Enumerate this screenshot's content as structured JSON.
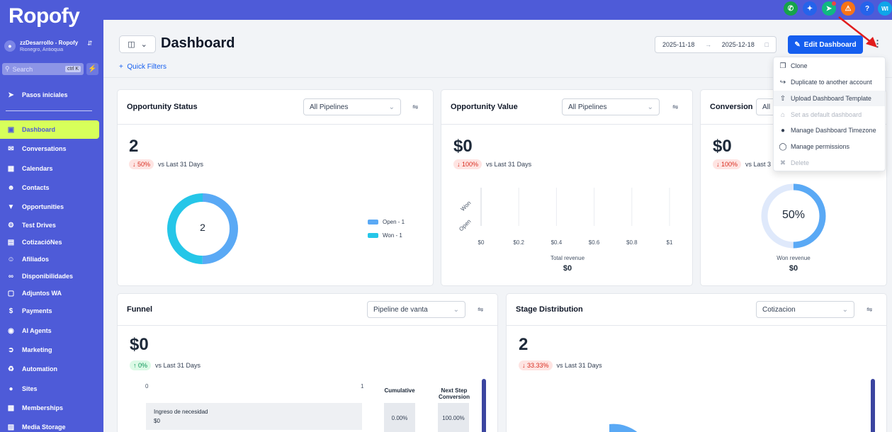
{
  "brand": {
    "logo": "Ropofy"
  },
  "account": {
    "name": "zzDesarrollo - Ropofy",
    "location": "Rionegro, Antioquia"
  },
  "search": {
    "placeholder": "Search",
    "shortcut": "ctrl K"
  },
  "nav": [
    {
      "label": "Pasos iniciales",
      "icon": "rocket-icon"
    },
    {
      "label": "Dashboard",
      "icon": "dashboard-icon",
      "active": true
    },
    {
      "label": "Conversations",
      "icon": "chat-icon"
    },
    {
      "label": "Calendars",
      "icon": "calendar-icon"
    },
    {
      "label": "Contacts",
      "icon": "contacts-icon"
    },
    {
      "label": "Opportunities",
      "icon": "funnel-icon"
    },
    {
      "label": "Test Drives",
      "icon": "car-icon"
    },
    {
      "label": "CotizacióNes",
      "icon": "document-icon"
    },
    {
      "label": "Afiliados",
      "icon": "users-icon"
    },
    {
      "label": "Disponibilidades",
      "icon": "link-icon"
    },
    {
      "label": "Adjuntos WA",
      "icon": "box-icon"
    },
    {
      "label": "Payments",
      "icon": "dollar-icon"
    },
    {
      "label": "AI Agents",
      "icon": "robot-icon"
    },
    {
      "label": "Marketing",
      "icon": "megaphone-icon"
    },
    {
      "label": "Automation",
      "icon": "automation-icon"
    },
    {
      "label": "Sites",
      "icon": "globe-icon"
    },
    {
      "label": "Memberships",
      "icon": "membership-icon"
    },
    {
      "label": "Media Storage",
      "icon": "media-icon"
    }
  ],
  "topbar": {
    "avatar": "WI",
    "help": "?"
  },
  "header": {
    "title": "Dashboard",
    "quick_filters": "Quick Filters",
    "date_start": "2025-11-18",
    "date_end": "2025-12-18",
    "edit_label": "Edit Dashboard"
  },
  "menu": {
    "items": [
      {
        "label": "Clone",
        "icon": "clone-icon"
      },
      {
        "label": "Duplicate to another account",
        "icon": "duplicate-icon"
      },
      {
        "label": "Upload Dashboard Template",
        "icon": "upload-icon",
        "hover": true
      },
      {
        "label": "Set as default dashboard",
        "icon": "home-icon",
        "disabled": true
      },
      {
        "label": "Manage Dashboard Timezone",
        "icon": "globe-icon"
      },
      {
        "label": "Manage permissions",
        "icon": "lock-icon"
      },
      {
        "label": "Delete",
        "icon": "trash-icon",
        "disabled": true
      }
    ]
  },
  "cards": {
    "opp_status": {
      "title": "Opportunity Status",
      "select": "All Pipelines",
      "value": "2",
      "change": "50%",
      "direction": "down",
      "compare": "vs Last 31 Days",
      "center": "2",
      "legend": [
        "Open - 1",
        "Won - 1"
      ],
      "colors": {
        "open": "#5aa9f5",
        "won": "#25c6e8"
      }
    },
    "opp_value": {
      "title": "Opportunity Value",
      "select": "All Pipelines",
      "value": "$0",
      "change": "100%",
      "direction": "down",
      "compare": "vs Last 31 Days",
      "y_labels": [
        "Won",
        "Open"
      ],
      "x_ticks": [
        "$0",
        "$0.2",
        "$0.4",
        "$0.6",
        "$0.8",
        "$1"
      ],
      "footer_label": "Total revenue",
      "footer_value": "$0"
    },
    "conversion": {
      "title": "Conversion",
      "select": "All",
      "value": "$0",
      "change": "100%",
      "direction": "down",
      "compare": "vs Last 3",
      "center": "50%",
      "gauge_percent": 50,
      "footer_label": "Won revenue",
      "footer_value": "$0"
    },
    "funnel": {
      "title": "Funnel",
      "select": "Pipeline de vanta",
      "value": "$0",
      "change": "0%",
      "direction": "up",
      "compare": "vs Last 31 Days",
      "axis": [
        "0",
        "1"
      ],
      "col_cumulative": "Cumulative",
      "col_next": "Next Step Conversion",
      "stage": "Ingreso de necesidad",
      "stage_value": "$0",
      "cumulative": "0.00%",
      "next": "100.00%"
    },
    "stage_dist": {
      "title": "Stage Distribution",
      "select": "Cotizacion",
      "value": "2",
      "change": "33.33%",
      "direction": "down",
      "compare": "vs Last 31 Days"
    }
  }
}
